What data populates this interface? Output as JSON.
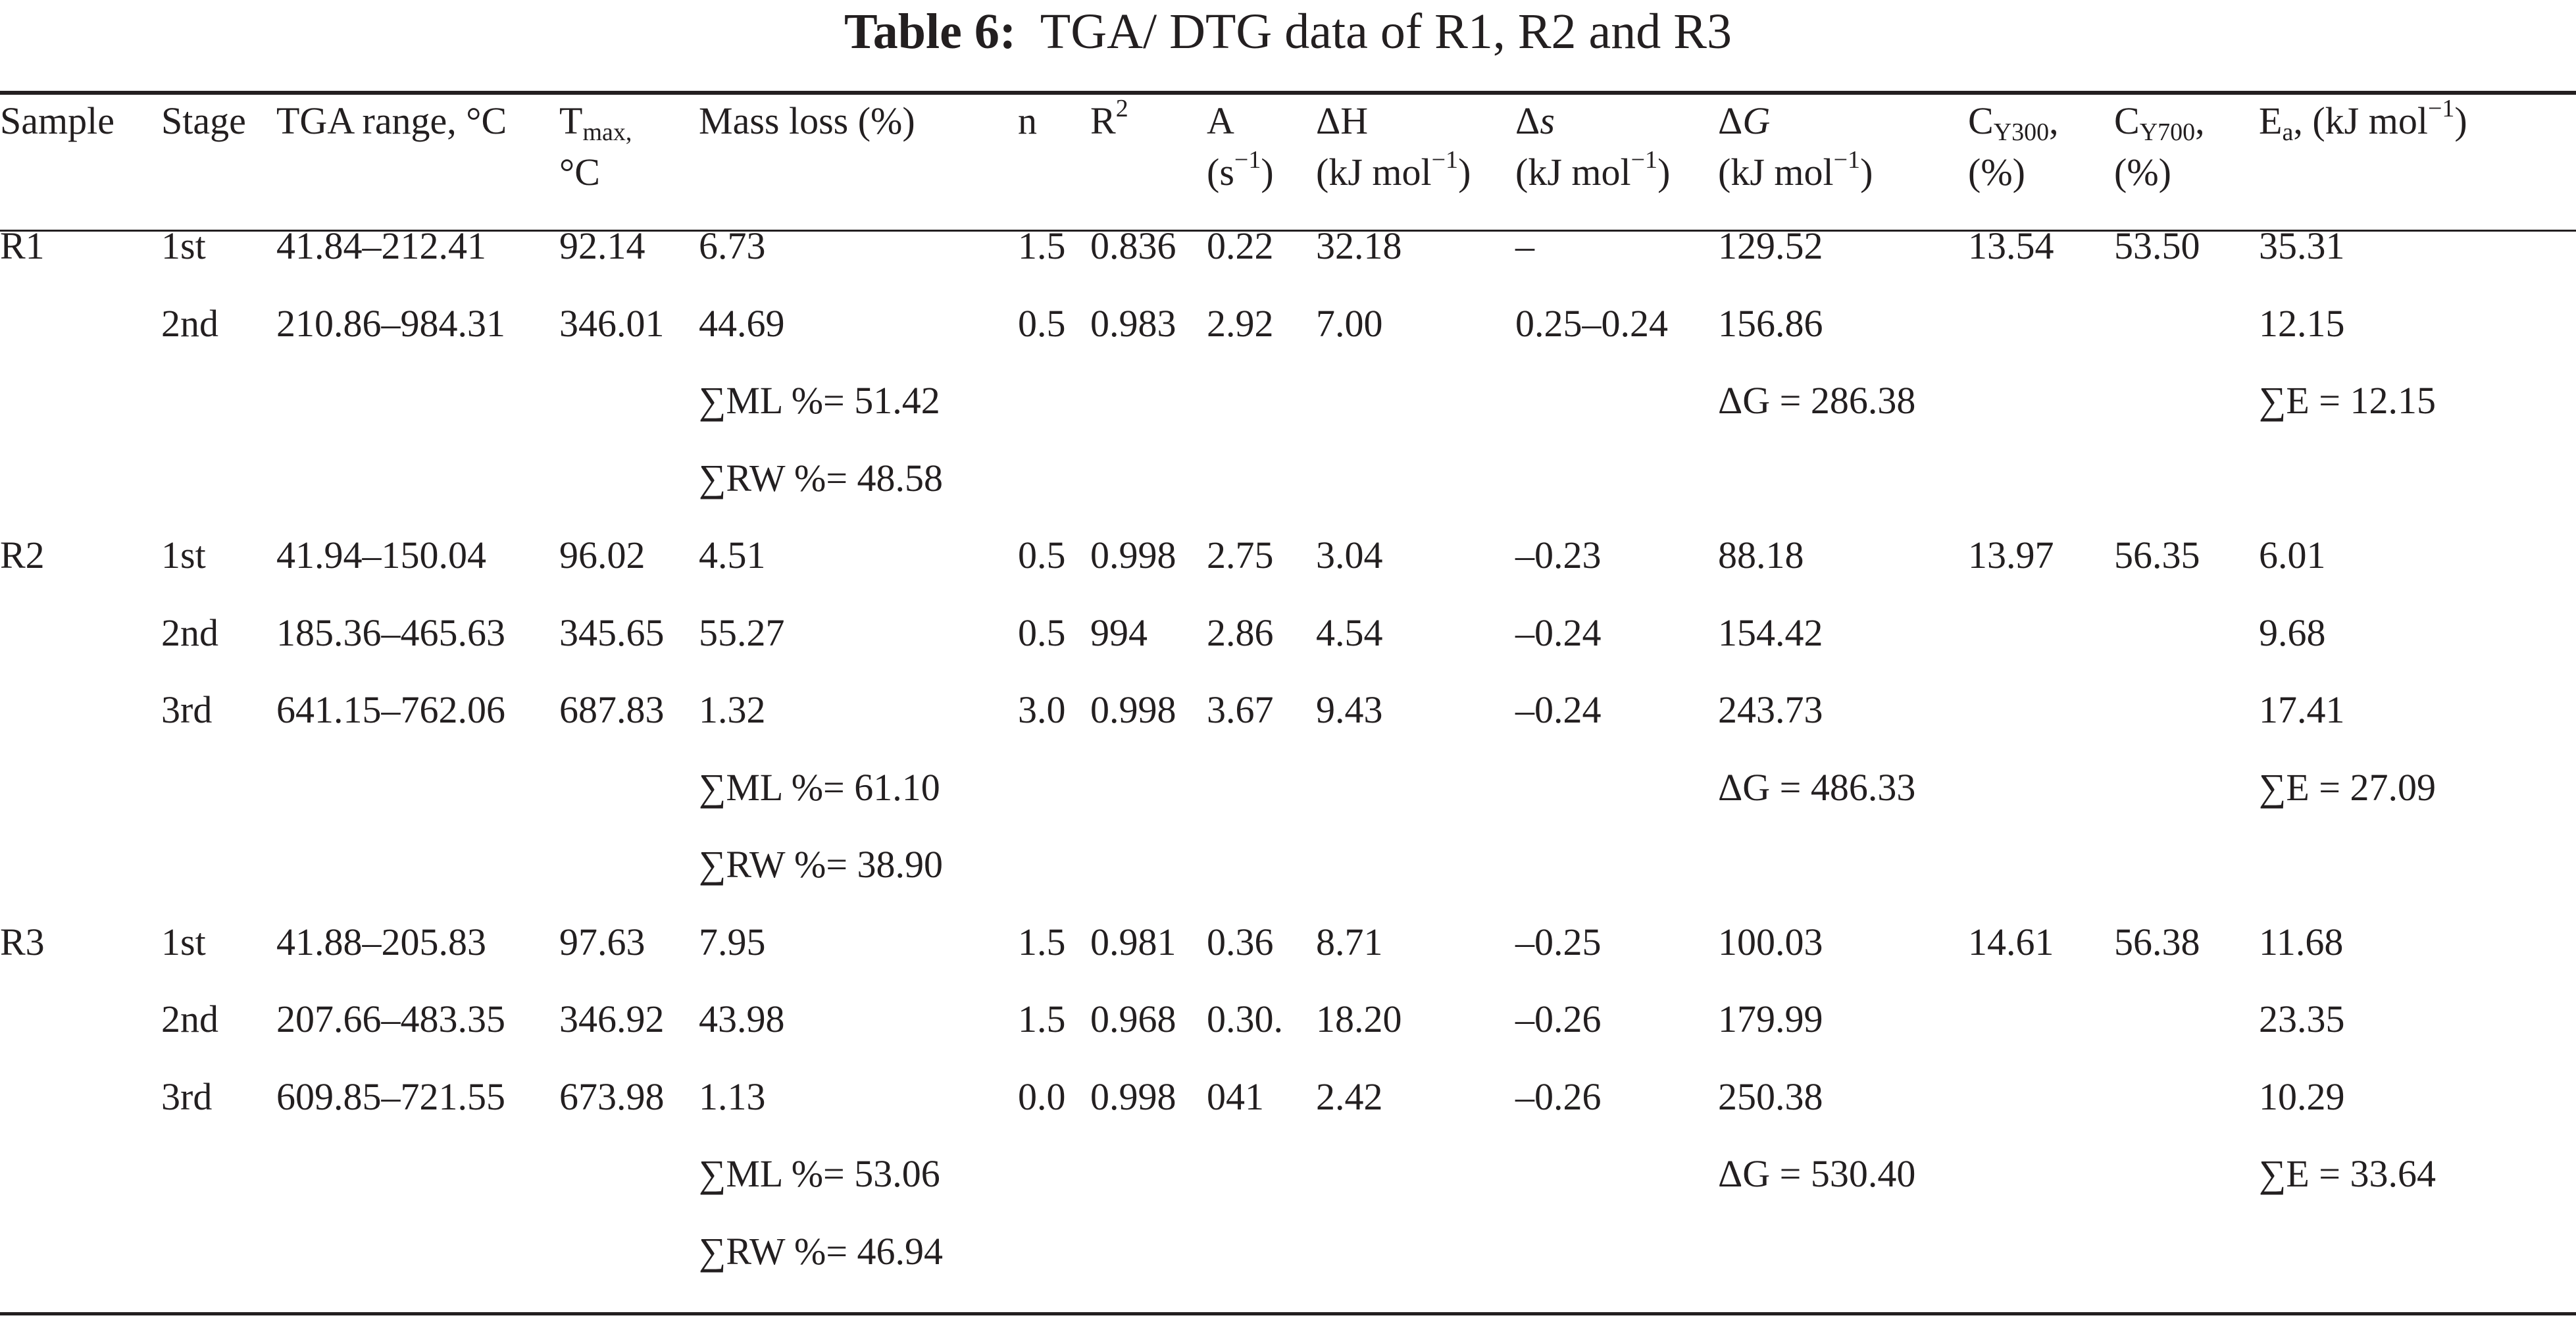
{
  "title": {
    "label": "Table 6:",
    "text": "TGA/ DTG data of R1, R2 and R3"
  },
  "headers": {
    "sample": "Sample",
    "stage": "Stage",
    "tga_range": "TGA range, °C",
    "tmax_main": "T",
    "tmax_sub": "max,",
    "tmax_unit": "°C",
    "mass_loss": "Mass loss (%)",
    "n": "n",
    "r2_main": "R",
    "r2_sup": "2",
    "a_main": "A",
    "a_unit_pre": "(s",
    "a_unit_sup": "−1",
    "a_unit_post": ")",
    "dh_main": "ΔH",
    "dh_unit_pre": "(kJ mol",
    "dh_unit_sup": "−1",
    "dh_unit_post": ")",
    "ds_delta": "Δ",
    "ds_s": "s",
    "ds_unit_pre": "(kJ mol",
    "ds_unit_sup": "−1",
    "ds_unit_post": ")",
    "dg_delta": "Δ",
    "dg_g": "G",
    "dg_unit_pre": "(kJ mol",
    "dg_unit_sup": "−1",
    "dg_unit_post": ")",
    "cy300_main": "C",
    "cy300_sub": "Y300",
    "cy300_post": ",",
    "cy300_unit": "(%)",
    "cy700_main": "C",
    "cy700_sub": "Y700",
    "cy700_post": ",",
    "cy700_unit": "(%)",
    "ea_main": "E",
    "ea_sub": "a",
    "ea_pre": ", (kJ mol",
    "ea_sup": "−1",
    "ea_post": ")"
  },
  "rows": [
    {
      "sample": "R1",
      "stage": "1st",
      "tga": "41.84–212.41",
      "tmax": "92.14",
      "ml": "6.73",
      "n": "1.5",
      "r2": "0.836",
      "a": "0.22",
      "dh": "32.18",
      "ds": "–",
      "dg": "129.52",
      "cy300": "13.54",
      "cy700": "53.50",
      "ea": "35.31"
    },
    {
      "sample": "",
      "stage": "2nd",
      "tga": "210.86–984.31",
      "tmax": "346.01",
      "ml": "44.69",
      "n": "0.5",
      "r2": "0.983",
      "a": "2.92",
      "dh": "7.00",
      "ds": "0.25–0.24",
      "dg": "156.86",
      "cy300": "",
      "cy700": "",
      "ea": "12.15"
    },
    {
      "sample": "",
      "stage": "",
      "tga": "",
      "tmax": "",
      "ml": "∑ML %= 51.42",
      "n": "",
      "r2": "",
      "a": "",
      "dh": "",
      "ds": "",
      "dg": "ΔG = 286.38",
      "cy300": "",
      "cy700": "",
      "ea": "∑E = 12.15"
    },
    {
      "sample": "",
      "stage": "",
      "tga": "",
      "tmax": "",
      "ml": "∑RW %= 48.58",
      "n": "",
      "r2": "",
      "a": "",
      "dh": "",
      "ds": "",
      "dg": "",
      "cy300": "",
      "cy700": "",
      "ea": ""
    },
    {
      "sample": "R2",
      "stage": "1st",
      "tga": "41.94–150.04",
      "tmax": "96.02",
      "ml": "4.51",
      "n": "0.5",
      "r2": "0.998",
      "a": "2.75",
      "dh": "3.04",
      "ds": "–0.23",
      "dg": "88.18",
      "cy300": "13.97",
      "cy700": "56.35",
      "ea": "6.01"
    },
    {
      "sample": "",
      "stage": "2nd",
      "tga": "185.36–465.63",
      "tmax": "345.65",
      "ml": "55.27",
      "n": "0.5",
      "r2": "994",
      "a": "2.86",
      "dh": "4.54",
      "ds": "–0.24",
      "dg": "154.42",
      "cy300": "",
      "cy700": "",
      "ea": "9.68"
    },
    {
      "sample": "",
      "stage": "3rd",
      "tga": "641.15–762.06",
      "tmax": "687.83",
      "ml": "1.32",
      "n": "3.0",
      "r2": "0.998",
      "a": "3.67",
      "dh": "9.43",
      "ds": "–0.24",
      "dg": "243.73",
      "cy300": "",
      "cy700": "",
      "ea": "17.41"
    },
    {
      "sample": "",
      "stage": "",
      "tga": "",
      "tmax": "",
      "ml": "∑ML %= 61.10",
      "n": "",
      "r2": "",
      "a": "",
      "dh": "",
      "ds": "",
      "dg": "ΔG = 486.33",
      "cy300": "",
      "cy700": "",
      "ea": "∑E = 27.09"
    },
    {
      "sample": "",
      "stage": "",
      "tga": "",
      "tmax": "",
      "ml": "∑RW %= 38.90",
      "n": "",
      "r2": "",
      "a": "",
      "dh": "",
      "ds": "",
      "dg": "",
      "cy300": "",
      "cy700": "",
      "ea": ""
    },
    {
      "sample": "R3",
      "stage": "1st",
      "tga": "41.88–205.83",
      "tmax": "97.63",
      "ml": "7.95",
      "n": "1.5",
      "r2": "0.981",
      "a": "0.36",
      "dh": "8.71",
      "ds": "–0.25",
      "dg": "100.03",
      "cy300": "14.61",
      "cy700": "56.38",
      "ea": "11.68"
    },
    {
      "sample": "",
      "stage": "2nd",
      "tga": "207.66–483.35",
      "tmax": "346.92",
      "ml": "43.98",
      "n": "1.5",
      "r2": "0.968",
      "a": "0.30.",
      "dh": "18.20",
      "ds": "–0.26",
      "dg": "179.99",
      "cy300": "",
      "cy700": "",
      "ea": "23.35"
    },
    {
      "sample": "",
      "stage": "3rd",
      "tga": "609.85–721.55",
      "tmax": "673.98",
      "ml": "1.13",
      "n": "0.0",
      "r2": "0.998",
      "a": "041",
      "dh": "2.42",
      "ds": "–0.26",
      "dg": "250.38",
      "cy300": "",
      "cy700": "",
      "ea": "10.29"
    },
    {
      "sample": "",
      "stage": "",
      "tga": "",
      "tmax": "",
      "ml": "∑ML %= 53.06",
      "n": "",
      "r2": "",
      "a": "",
      "dh": "",
      "ds": "",
      "dg": "ΔG = 530.40",
      "cy300": "",
      "cy700": "",
      "ea": "∑E = 33.64"
    },
    {
      "sample": "",
      "stage": "",
      "tga": "",
      "tmax": "",
      "ml": "∑RW %= 46.94",
      "n": "",
      "r2": "",
      "a": "",
      "dh": "",
      "ds": "",
      "dg": "",
      "cy300": "",
      "cy700": "",
      "ea": ""
    }
  ]
}
